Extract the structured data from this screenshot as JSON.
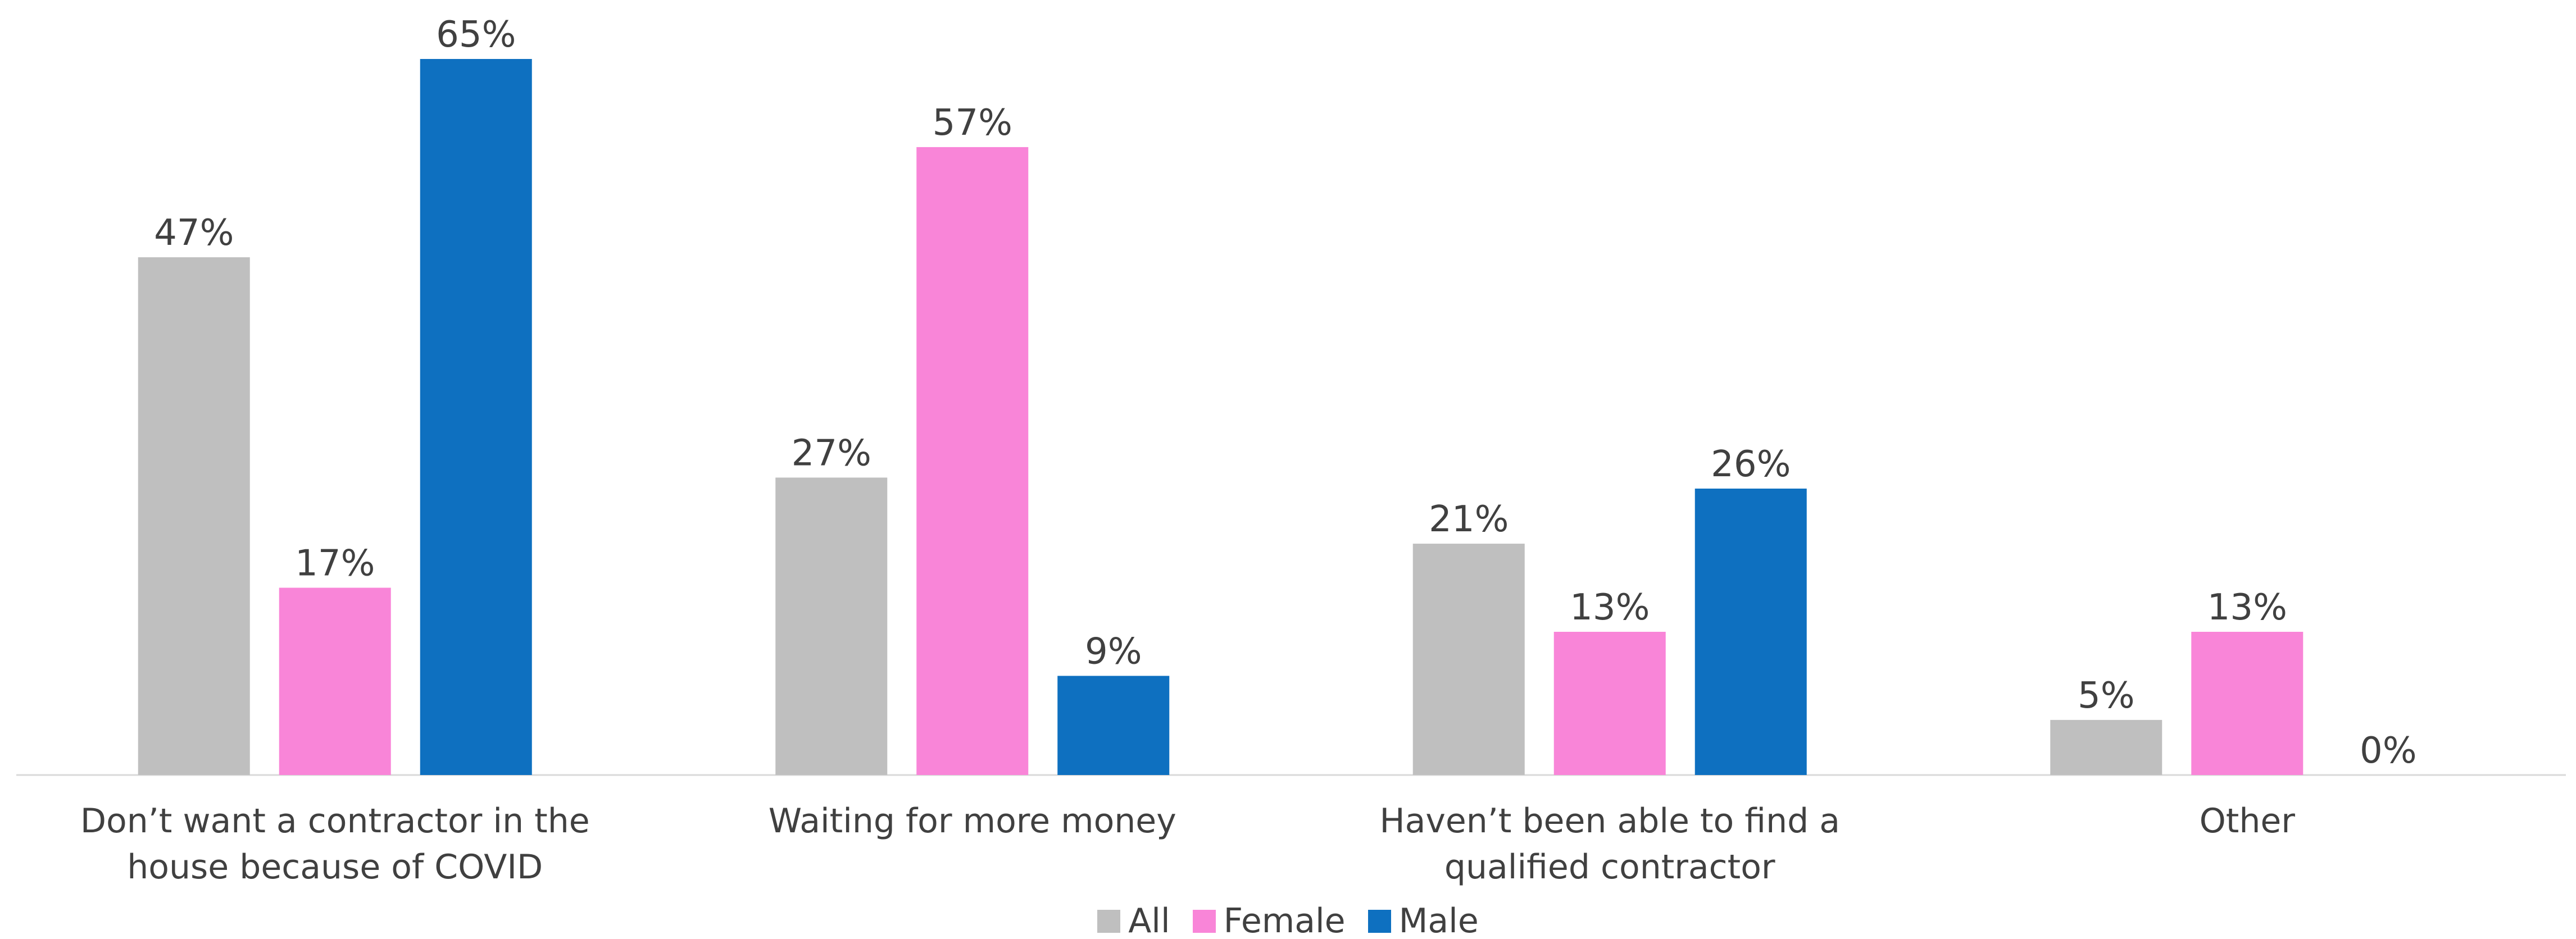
{
  "chart_data": {
    "type": "bar",
    "categories": [
      "Don’t want a contractor in the house because of COVID",
      "Waiting for more money",
      "Haven’t been able to find a qualified contractor",
      "Other"
    ],
    "series": [
      {
        "name": "All",
        "color": "#bfbfbf",
        "values": [
          47,
          27,
          21,
          5
        ],
        "value_labels": [
          "47%",
          "27%",
          "21%",
          "5%"
        ]
      },
      {
        "name": "Female",
        "color": "#f985d8",
        "values": [
          17,
          57,
          13,
          13
        ],
        "value_labels": [
          "17%",
          "57%",
          "13%",
          "13%"
        ]
      },
      {
        "name": "Male",
        "color": "#0e70c0",
        "values": [
          65,
          9,
          26,
          0
        ],
        "value_labels": [
          "65%",
          "9%",
          "26%",
          "0%"
        ]
      }
    ],
    "legend": "bottom"
  }
}
